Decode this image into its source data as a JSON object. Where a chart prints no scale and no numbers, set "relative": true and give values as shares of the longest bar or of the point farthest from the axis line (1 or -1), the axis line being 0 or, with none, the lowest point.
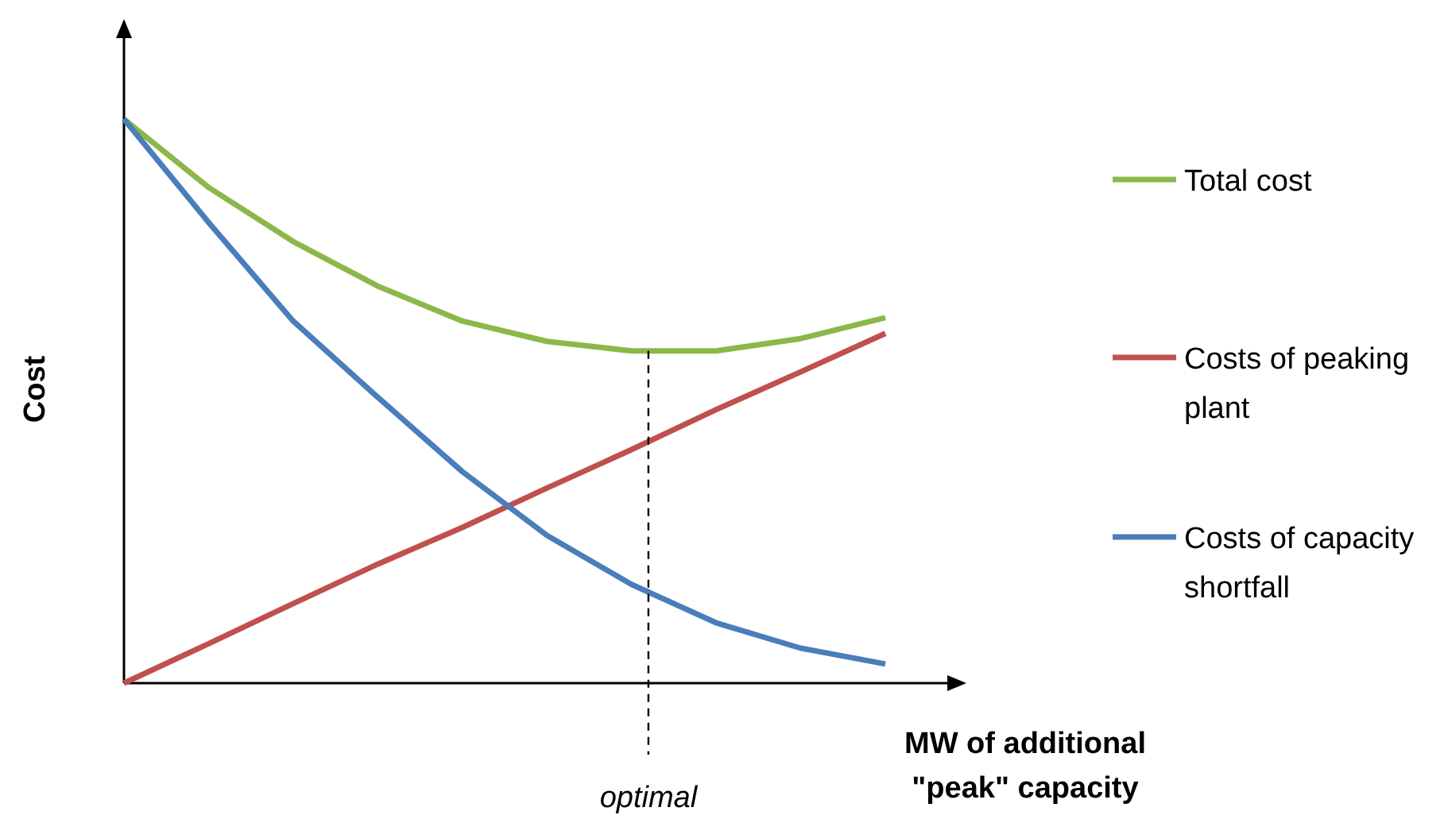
{
  "chart_data": {
    "type": "line",
    "relative": true,
    "xlabel": "MW of additional \"peak\" capacity",
    "ylabel": "Cost",
    "categories": [
      null,
      null,
      null,
      null,
      null,
      null,
      null,
      null,
      null,
      null
    ],
    "series": [
      {
        "name": "Total cost",
        "color": "#8cb84a",
        "values": [
          1,
          0.879,
          0.783,
          0.704,
          0.642,
          0.606,
          0.589,
          0.589,
          0.611,
          0.648
        ]
      },
      {
        "name": "Costs of peaking plant",
        "color": "#c0504d",
        "values": [
          0,
          0.07,
          0.141,
          0.211,
          0.276,
          0.346,
          0.414,
          0.485,
          0.552,
          0.62
        ]
      },
      {
        "name": "Costs of capacity shortfall",
        "color": "#4a7ebb",
        "values": [
          1,
          0.817,
          0.642,
          0.507,
          0.375,
          0.262,
          0.175,
          0.107,
          0.062,
          0.034
        ]
      }
    ],
    "annotations": [
      "optimal"
    ],
    "legend": "right",
    "line_style": "solid"
  }
}
